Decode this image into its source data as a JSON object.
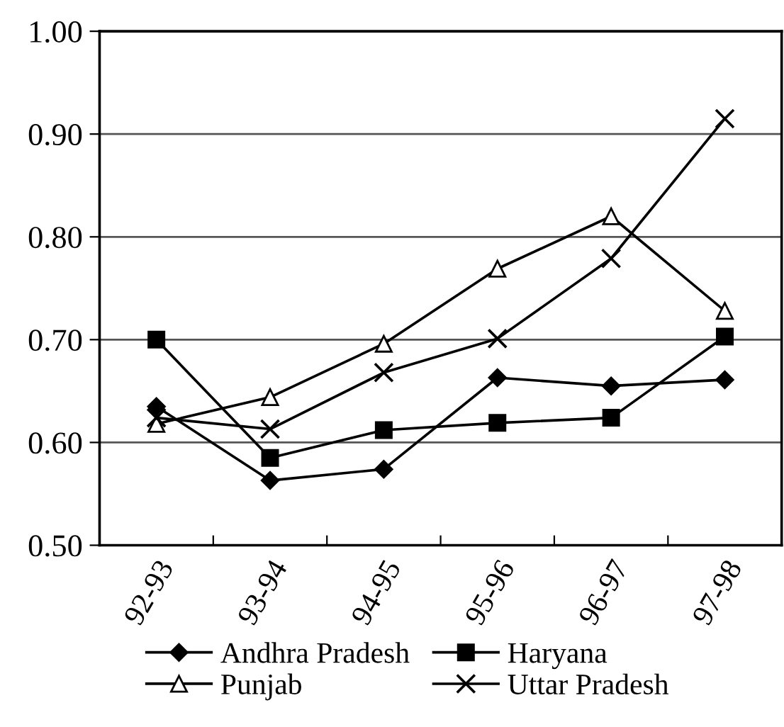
{
  "chart_data": {
    "type": "line",
    "categories": [
      "92-93",
      "93-94",
      "94-95",
      "95-96",
      "96-97",
      "97-98"
    ],
    "series": [
      {
        "name": "Andhra Pradesh",
        "color": "#000000",
        "marker": "diamond",
        "values": [
          0.635,
          0.563,
          0.574,
          0.663,
          0.655,
          0.661
        ]
      },
      {
        "name": "Haryana",
        "color": "#000000",
        "marker": "square",
        "values": [
          0.7,
          0.585,
          0.612,
          0.619,
          0.624,
          0.703
        ]
      },
      {
        "name": "Punjab",
        "color": "#000000",
        "marker": "triangle",
        "values": [
          0.618,
          0.644,
          0.696,
          0.769,
          0.82,
          0.728
        ]
      },
      {
        "name": "Uttar Pradesh",
        "color": "#000000",
        "marker": "cross",
        "values": [
          0.624,
          0.613,
          0.668,
          0.701,
          0.779,
          0.915
        ]
      }
    ],
    "ylim": [
      0.5,
      1.0
    ],
    "yticks": [
      {
        "value": 0.5,
        "label": "0.50"
      },
      {
        "value": 0.6,
        "label": "0.60"
      },
      {
        "value": 0.7,
        "label": "0.70"
      },
      {
        "value": 0.8,
        "label": "0.80"
      },
      {
        "value": 0.9,
        "label": "0.90"
      },
      {
        "value": 1.0,
        "label": "1.00"
      }
    ],
    "grid": "y",
    "legend": "bottom",
    "line_style": "solid"
  }
}
